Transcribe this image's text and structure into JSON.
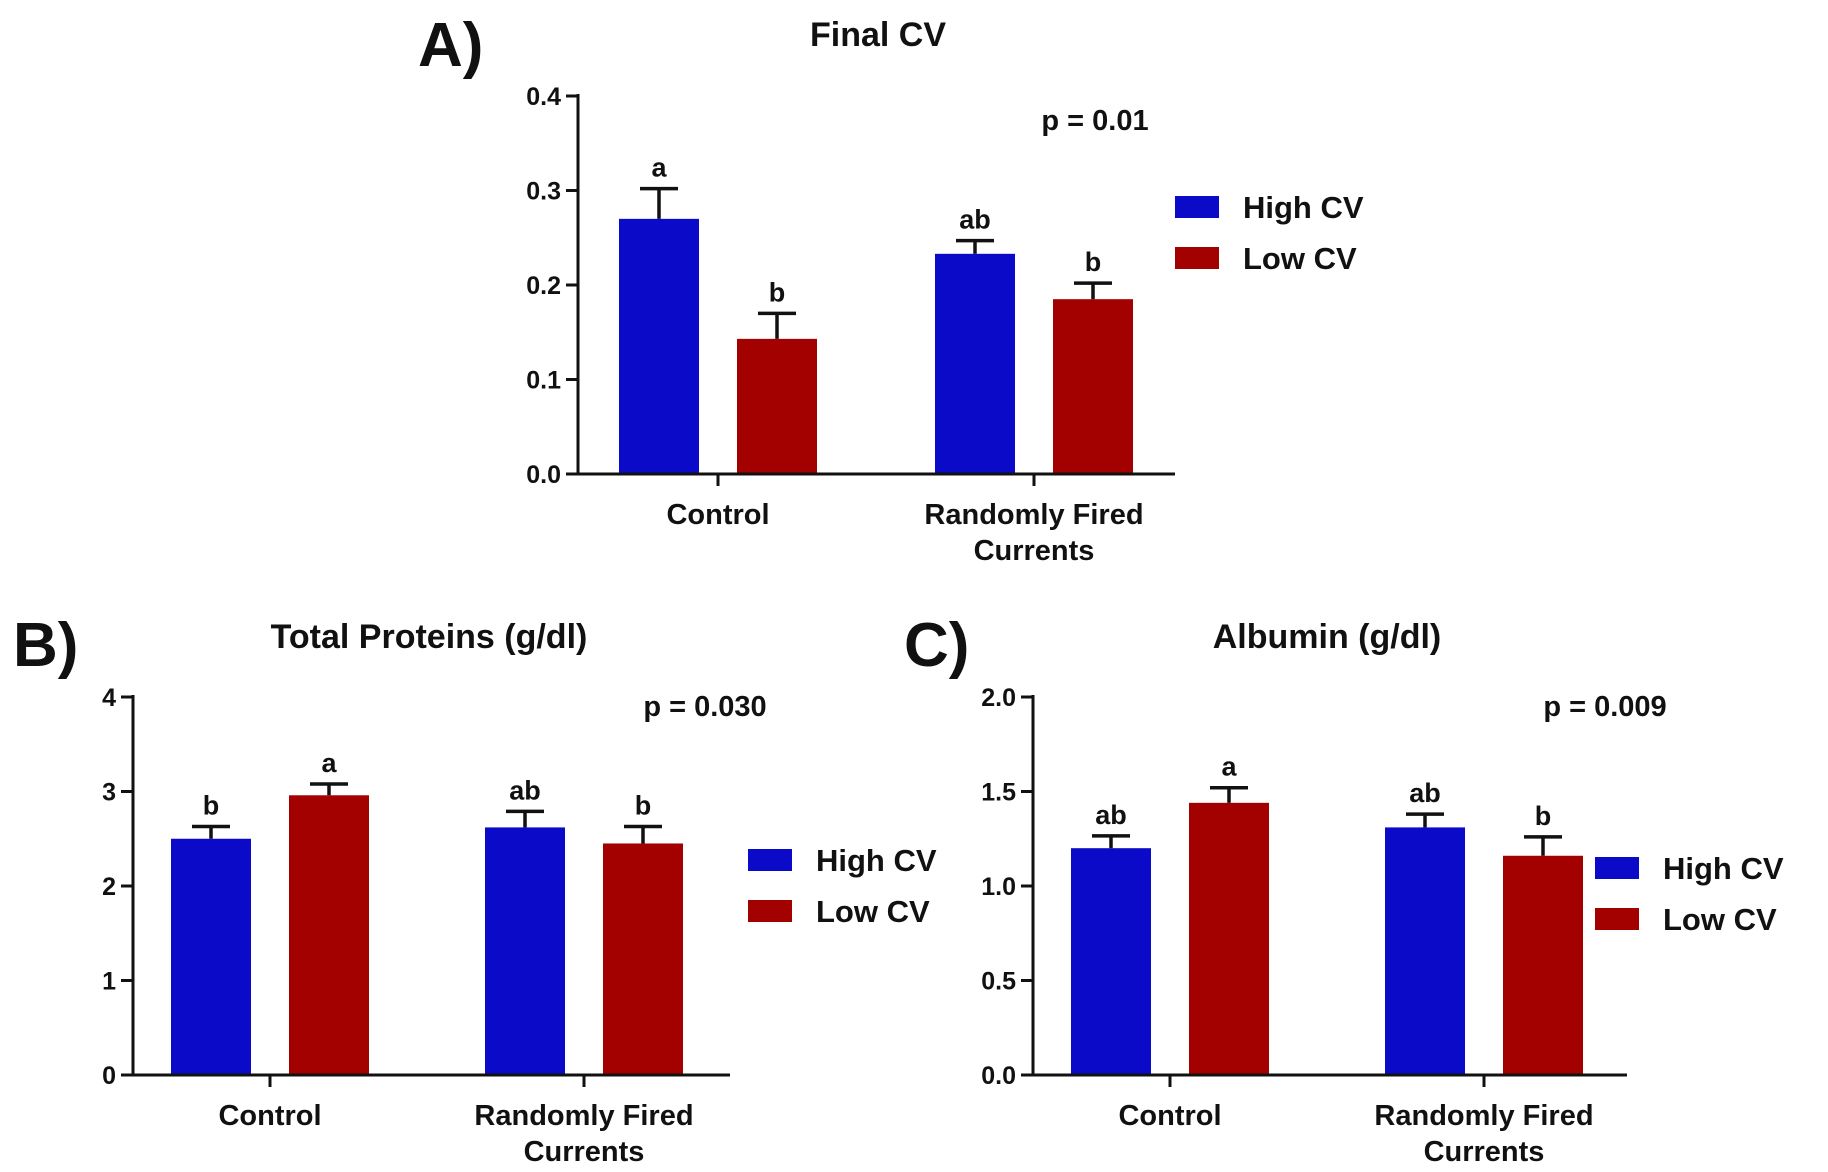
{
  "colors": {
    "high_cv": "#0a0ac8",
    "low_cv": "#a30000",
    "axis": "#111111"
  },
  "chart_data": [
    {
      "panel": "A)",
      "type": "bar",
      "title": "Final CV",
      "categories": [
        "Control",
        "Randomly Fired Currents"
      ],
      "category_lines": [
        [
          "Control"
        ],
        [
          "Randomly Fired",
          "Currents"
        ]
      ],
      "series": [
        {
          "name": "High CV",
          "values": [
            0.27,
            0.233
          ],
          "errors": [
            0.032,
            0.014
          ],
          "letters": [
            "a",
            "ab"
          ]
        },
        {
          "name": "Low CV",
          "values": [
            0.143,
            0.185
          ],
          "errors": [
            0.027,
            0.017
          ],
          "letters": [
            "b",
            "b"
          ]
        }
      ],
      "ylim": [
        0,
        0.4
      ],
      "yticks": [
        "0.0",
        "0.1",
        "0.2",
        "0.3",
        "0.4"
      ],
      "xlabel": "",
      "ylabel": "",
      "annotation": "p = 0.01",
      "legend": [
        "High CV",
        "Low CV"
      ],
      "grid": false
    },
    {
      "panel": "B)",
      "type": "bar",
      "title": "Total Proteins (g/dl)",
      "categories": [
        "Control",
        "Randomly Fired Currents"
      ],
      "category_lines": [
        [
          "Control"
        ],
        [
          "Randomly Fired",
          "Currents"
        ]
      ],
      "series": [
        {
          "name": "High CV",
          "values": [
            2.5,
            2.62
          ],
          "errors": [
            0.13,
            0.17
          ],
          "letters": [
            "b",
            "ab"
          ]
        },
        {
          "name": "Low CV",
          "values": [
            2.96,
            2.45
          ],
          "errors": [
            0.12,
            0.18
          ],
          "letters": [
            "a",
            "b"
          ]
        }
      ],
      "ylim": [
        0,
        4
      ],
      "yticks": [
        "0",
        "1",
        "2",
        "3",
        "4"
      ],
      "xlabel": "",
      "ylabel": "",
      "annotation": "p = 0.030",
      "legend": [
        "High CV",
        "Low CV"
      ],
      "grid": false
    },
    {
      "panel": "C)",
      "type": "bar",
      "title": "Albumin (g/dl)",
      "categories": [
        "Control",
        "Randomly Fired Currents"
      ],
      "category_lines": [
        [
          "Control"
        ],
        [
          "Randomly Fired",
          "Currents"
        ]
      ],
      "series": [
        {
          "name": "High CV",
          "values": [
            1.2,
            1.31
          ],
          "errors": [
            0.065,
            0.07
          ],
          "letters": [
            "ab",
            "ab"
          ]
        },
        {
          "name": "Low CV",
          "values": [
            1.44,
            1.16
          ],
          "errors": [
            0.08,
            0.1
          ],
          "letters": [
            "a",
            "b"
          ]
        }
      ],
      "ylim": [
        0,
        2.0
      ],
      "yticks": [
        "0.0",
        "0.5",
        "1.0",
        "1.5",
        "2.0"
      ],
      "xlabel": "",
      "ylabel": "",
      "annotation": "p = 0.009",
      "legend": [
        "High CV",
        "Low CV"
      ],
      "grid": false
    }
  ]
}
